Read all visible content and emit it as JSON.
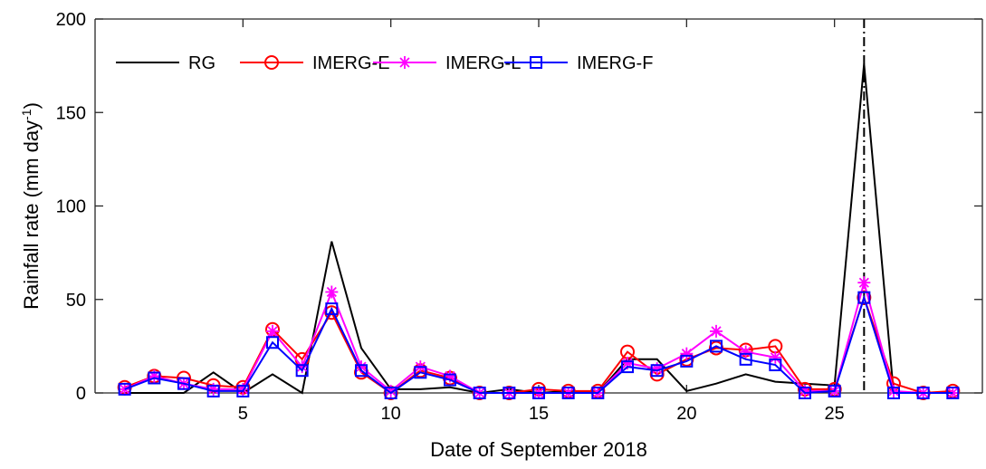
{
  "chart_data": {
    "type": "line",
    "xlabel": "Date of September 2018",
    "ylabel": "Rainfall rate (mm day",
    "ylabel_superscript": "-1",
    "ylabel_suffix": ")",
    "xlim": [
      0,
      30
    ],
    "ylim": [
      0,
      200
    ],
    "xticks": [
      5,
      10,
      15,
      20,
      25
    ],
    "yticks": [
      0,
      50,
      100,
      150,
      200
    ],
    "grid": false,
    "legend_position": "top-left",
    "vertical_marker_x": 26,
    "x": [
      1,
      2,
      3,
      4,
      5,
      6,
      7,
      8,
      9,
      10,
      11,
      12,
      13,
      14,
      15,
      16,
      17,
      18,
      19,
      20,
      21,
      22,
      23,
      24,
      25,
      26,
      27,
      28,
      29
    ],
    "series": [
      {
        "name": "RG",
        "color": "#000000",
        "marker": "none",
        "values": [
          0,
          0,
          0,
          11,
          0,
          10,
          0,
          81,
          24,
          2,
          2,
          3,
          0,
          2,
          0,
          1,
          0,
          18,
          18,
          1,
          5,
          10,
          6,
          5,
          4,
          176,
          0,
          0,
          0
        ]
      },
      {
        "name": "IMERG-E",
        "color": "#ff0000",
        "marker": "circle",
        "values": [
          3,
          9,
          8,
          4,
          3,
          34,
          18,
          43,
          11,
          0,
          12,
          8,
          0,
          0,
          2,
          1,
          1,
          22,
          10,
          18,
          24,
          23,
          25,
          2,
          2,
          51,
          5,
          0,
          1
        ]
      },
      {
        "name": "IMERG-L",
        "color": "#ff00ff",
        "marker": "star",
        "values": [
          2,
          9,
          5,
          2,
          2,
          33,
          14,
          54,
          14,
          1,
          14,
          9,
          0,
          0,
          0,
          0,
          0,
          16,
          13,
          21,
          33,
          22,
          19,
          1,
          1,
          59,
          1,
          0,
          0
        ]
      },
      {
        "name": "IMERG-F",
        "color": "#0000ff",
        "marker": "square",
        "values": [
          2,
          8,
          5,
          1,
          1,
          27,
          12,
          45,
          12,
          0,
          11,
          7,
          0,
          0,
          0,
          0,
          0,
          14,
          12,
          17,
          25,
          18,
          15,
          0,
          1,
          51,
          0,
          0,
          0
        ]
      }
    ]
  }
}
